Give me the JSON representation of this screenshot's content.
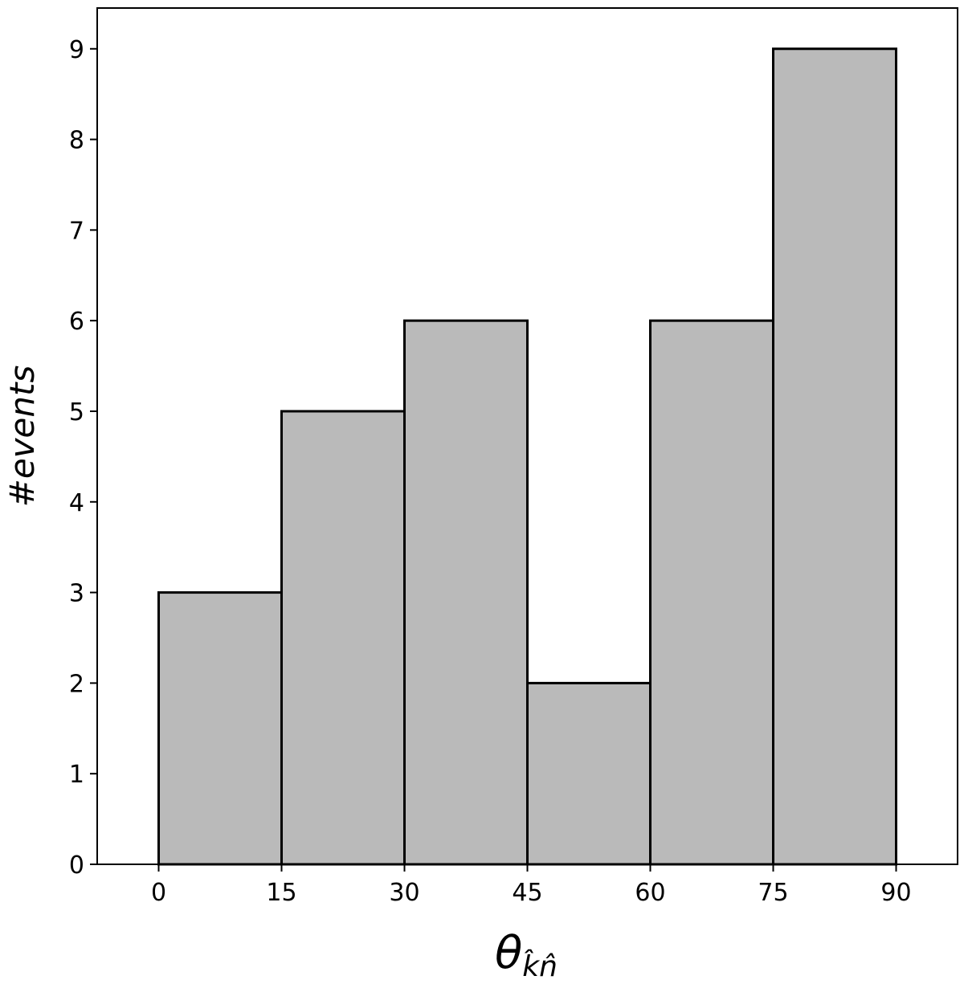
{
  "chart_data": {
    "type": "bar",
    "bins": [
      {
        "x0": 0,
        "x1": 15,
        "count": 3
      },
      {
        "x0": 15,
        "x1": 30,
        "count": 5
      },
      {
        "x0": 30,
        "x1": 45,
        "count": 6
      },
      {
        "x0": 45,
        "x1": 60,
        "count": 2
      },
      {
        "x0": 60,
        "x1": 75,
        "count": 6
      },
      {
        "x0": 75,
        "x1": 90,
        "count": 9
      }
    ],
    "x_ticks": [
      "0",
      "15",
      "30",
      "45",
      "60",
      "75",
      "90"
    ],
    "y_ticks": [
      "0",
      "1",
      "2",
      "3",
      "4",
      "5",
      "6",
      "7",
      "8",
      "9"
    ],
    "xlabel": {
      "symbol": "θ",
      "subscript": "k̂n̂"
    },
    "xlabel_text": "θ_{k̂n̂}",
    "ylabel": "#events",
    "xlim": [
      -7.5,
      97.5
    ],
    "ylim": [
      0,
      9.45
    ],
    "bar_color": "#bababa",
    "edge_color": "#000000",
    "grid": false,
    "legend": "none"
  }
}
